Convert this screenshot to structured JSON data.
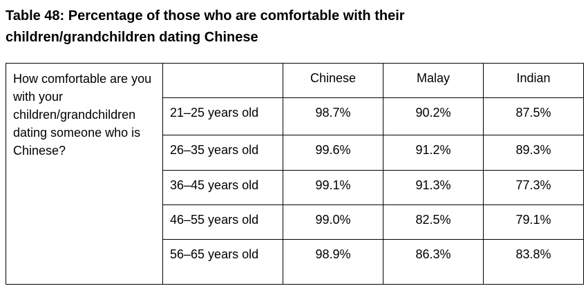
{
  "title": "Table 48: Percentage of those who are comfortable with their children/grandchildren dating Chinese",
  "table": {
    "question": "How comfortable are you with your children/grandchildren dating someone who is Chinese?",
    "columns": [
      "Chinese",
      "Malay",
      "Indian"
    ],
    "rows": [
      [
        "21–25 years old",
        "98.7%",
        "90.2%",
        "87.5%"
      ],
      [
        "26–35 years old",
        "99.6%",
        "91.2%",
        "89.3%"
      ],
      [
        "36–45 years old",
        "99.1%",
        "91.3%",
        "77.3%"
      ],
      [
        "46–55 years old",
        "99.0%",
        "82.5%",
        "79.1%"
      ],
      [
        "56–65 years old",
        "98.9%",
        "86.3%",
        "83.8%"
      ]
    ]
  }
}
